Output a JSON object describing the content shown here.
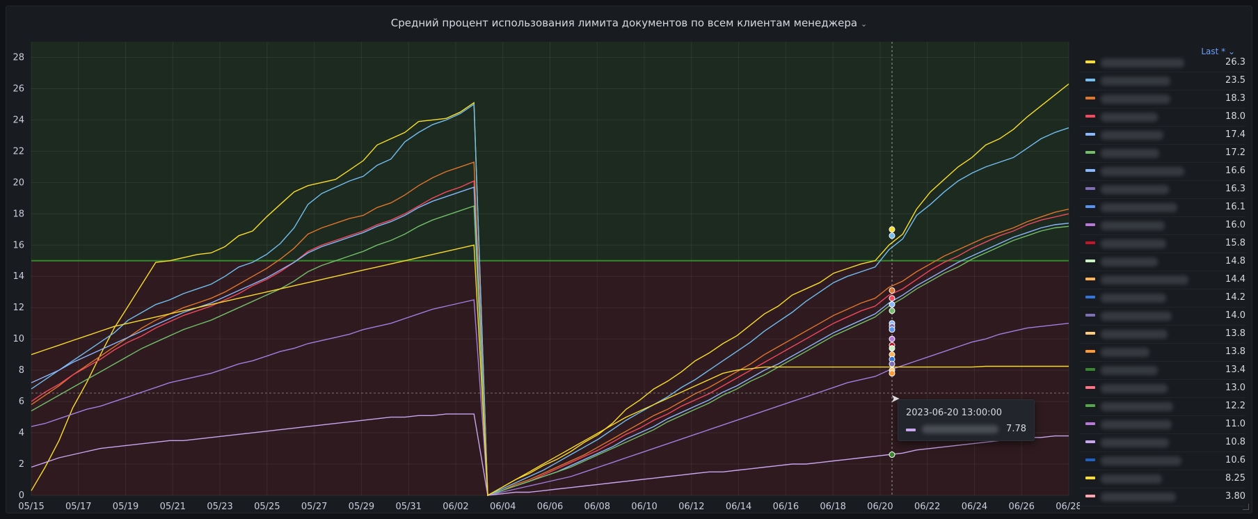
{
  "panel": {
    "title": "Средний процент использования лимита документов по всем клиентам менеджера",
    "title_chevron": "⌄",
    "legend_header": "Last * ⌄"
  },
  "tooltip": {
    "timestamp": "2023-06-20 13:00:00",
    "value": "7.78",
    "color": "#caa6f0"
  },
  "chart_data": {
    "type": "line",
    "ylim": [
      0,
      29
    ],
    "yticks": [
      0,
      2,
      4,
      6,
      8,
      10,
      12,
      14,
      16,
      18,
      20,
      22,
      24,
      26,
      28
    ],
    "x_ticks": [
      "05/15",
      "05/17",
      "05/19",
      "05/21",
      "05/23",
      "05/25",
      "05/27",
      "05/29",
      "05/31",
      "06/02",
      "06/04",
      "06/06",
      "06/08",
      "06/10",
      "06/12",
      "06/14",
      "06/16",
      "06/18",
      "06/20",
      "06/22",
      "06/24",
      "06/26",
      "06/28"
    ],
    "threshold": 15,
    "threshold_colors": {
      "above": "#1d2a1f",
      "below": "#2e1a1f",
      "line": "#37872d"
    },
    "series": [
      {
        "color": "#fade2a",
        "last": "26.3",
        "v": [
          0.3,
          1.8,
          3.5,
          5.6,
          7.2,
          9.0,
          10.7,
          12.1,
          13.5,
          14.9,
          15.0,
          15.2,
          15.4,
          15.5,
          15.9,
          16.6,
          16.9,
          17.8,
          18.6,
          19.4,
          19.8,
          20.0,
          20.2,
          20.8,
          21.4,
          22.4,
          22.8,
          23.2,
          23.9,
          24.0,
          24.1,
          24.5,
          25.1,
          0.0,
          0.5,
          1.0,
          1.4,
          1.9,
          2.3,
          2.8,
          3.4,
          3.9,
          4.6,
          5.5,
          6.1,
          6.8,
          7.3,
          7.9,
          8.6,
          9.1,
          9.7,
          10.2,
          10.9,
          11.6,
          12.1,
          12.8,
          13.2,
          13.6,
          14.2,
          14.5,
          14.8,
          15.0,
          16.0,
          16.7,
          18.3,
          19.4,
          20.2,
          21.0,
          21.6,
          22.4,
          22.8,
          23.4,
          24.2,
          24.9,
          25.6,
          26.3
        ]
      },
      {
        "color": "#73bff2",
        "last": "23.5",
        "v": [
          6.8,
          7.4,
          8.0,
          8.6,
          9.2,
          9.8,
          10.4,
          11.2,
          11.7,
          12.2,
          12.5,
          12.9,
          13.2,
          13.5,
          14.0,
          14.6,
          14.9,
          15.4,
          16.1,
          17.1,
          18.6,
          19.3,
          19.7,
          20.1,
          20.4,
          21.1,
          21.5,
          22.6,
          23.2,
          23.7,
          24.0,
          24.4,
          25.0,
          0.0,
          0.4,
          0.8,
          1.2,
          1.6,
          2.1,
          2.6,
          3.1,
          3.6,
          4.2,
          4.8,
          5.3,
          5.8,
          6.3,
          6.9,
          7.4,
          8.0,
          8.6,
          9.2,
          9.8,
          10.5,
          11.1,
          11.7,
          12.4,
          13.0,
          13.6,
          14.0,
          14.3,
          14.6,
          15.7,
          16.4,
          17.9,
          18.6,
          19.4,
          20.1,
          20.6,
          21.0,
          21.3,
          21.6,
          22.2,
          22.8,
          23.2,
          23.5
        ]
      },
      {
        "color": "#e0752d",
        "last": "18.3",
        "v": [
          5.8,
          6.4,
          7.0,
          7.7,
          8.3,
          8.9,
          9.5,
          10.1,
          10.7,
          11.2,
          11.6,
          12.0,
          12.3,
          12.6,
          13.0,
          13.5,
          14.0,
          14.5,
          15.1,
          15.8,
          16.7,
          17.1,
          17.4,
          17.7,
          17.9,
          18.4,
          18.7,
          19.2,
          19.8,
          20.3,
          20.7,
          21.0,
          21.3,
          0.0,
          0.3,
          0.7,
          1.0,
          1.4,
          1.8,
          2.2,
          2.6,
          3.1,
          3.6,
          4.1,
          4.6,
          5.1,
          5.5,
          6.0,
          6.5,
          6.9,
          7.4,
          7.9,
          8.4,
          9.0,
          9.5,
          10.0,
          10.5,
          11.0,
          11.5,
          11.9,
          12.3,
          12.6,
          13.3,
          13.7,
          14.3,
          14.8,
          15.3,
          15.7,
          16.1,
          16.5,
          16.8,
          17.1,
          17.5,
          17.8,
          18.1,
          18.3
        ]
      },
      {
        "color": "#f2495c",
        "last": "18.0",
        "v": [
          6.0,
          6.6,
          7.1,
          7.7,
          8.2,
          8.7,
          9.3,
          9.8,
          10.2,
          10.7,
          11.1,
          11.5,
          11.8,
          12.1,
          12.5,
          12.9,
          13.4,
          13.8,
          14.3,
          14.9,
          15.6,
          16.0,
          16.3,
          16.6,
          16.9,
          17.3,
          17.6,
          18.0,
          18.5,
          19.0,
          19.4,
          19.7,
          20.1,
          0.0,
          0.3,
          0.6,
          0.9,
          1.3,
          1.7,
          2.1,
          2.5,
          2.9,
          3.4,
          3.9,
          4.3,
          4.8,
          5.2,
          5.7,
          6.1,
          6.5,
          7.0,
          7.5,
          8.0,
          8.5,
          9.0,
          9.5,
          10.0,
          10.5,
          11.0,
          11.4,
          11.8,
          12.1,
          12.8,
          13.2,
          13.8,
          14.4,
          14.9,
          15.3,
          15.8,
          16.2,
          16.6,
          16.9,
          17.3,
          17.6,
          17.8,
          18.0
        ]
      },
      {
        "color": "#8ab8ff",
        "last": "17.4",
        "v": [
          7.2,
          7.6,
          8.0,
          8.5,
          8.9,
          9.3,
          9.7,
          10.1,
          10.5,
          10.9,
          11.3,
          11.7,
          12.0,
          12.3,
          12.7,
          13.1,
          13.5,
          13.9,
          14.4,
          14.9,
          15.5,
          15.9,
          16.2,
          16.5,
          16.8,
          17.2,
          17.5,
          17.9,
          18.4,
          18.8,
          19.1,
          19.4,
          19.7,
          0.0,
          0.3,
          0.6,
          0.9,
          1.2,
          1.5,
          1.9,
          2.3,
          2.7,
          3.1,
          3.6,
          4.0,
          4.4,
          4.9,
          5.3,
          5.7,
          6.1,
          6.6,
          7.0,
          7.5,
          8.0,
          8.4,
          8.9,
          9.4,
          9.9,
          10.4,
          10.8,
          11.2,
          11.6,
          12.3,
          12.8,
          13.4,
          13.9,
          14.4,
          14.9,
          15.3,
          15.7,
          16.1,
          16.5,
          16.8,
          17.1,
          17.3,
          17.4
        ]
      },
      {
        "color": "#73bf69",
        "last": "17.2",
        "v": [
          5.4,
          5.9,
          6.4,
          6.9,
          7.4,
          7.9,
          8.4,
          8.9,
          9.4,
          9.8,
          10.2,
          10.6,
          10.9,
          11.2,
          11.6,
          12.0,
          12.4,
          12.8,
          13.2,
          13.7,
          14.3,
          14.7,
          15.0,
          15.3,
          15.6,
          16.0,
          16.3,
          16.7,
          17.2,
          17.6,
          17.9,
          18.2,
          18.5,
          0.0,
          0.3,
          0.6,
          0.9,
          1.2,
          1.5,
          1.8,
          2.2,
          2.6,
          3.0,
          3.4,
          3.8,
          4.2,
          4.7,
          5.1,
          5.5,
          5.9,
          6.4,
          6.8,
          7.3,
          7.7,
          8.2,
          8.7,
          9.2,
          9.7,
          10.2,
          10.6,
          11.0,
          11.4,
          12.1,
          12.6,
          13.2,
          13.7,
          14.2,
          14.6,
          15.1,
          15.5,
          15.9,
          16.3,
          16.6,
          16.9,
          17.1,
          17.2
        ]
      },
      {
        "color": "#a37fe0",
        "last": "11.0",
        "v": [
          4.4,
          4.6,
          4.9,
          5.2,
          5.5,
          5.7,
          6.0,
          6.3,
          6.6,
          6.9,
          7.2,
          7.4,
          7.6,
          7.8,
          8.1,
          8.4,
          8.6,
          8.9,
          9.2,
          9.4,
          9.7,
          9.9,
          10.1,
          10.3,
          10.6,
          10.8,
          11.0,
          11.3,
          11.6,
          11.9,
          12.1,
          12.3,
          12.5,
          0.0,
          0.2,
          0.4,
          0.6,
          0.8,
          1.0,
          1.2,
          1.5,
          1.8,
          2.1,
          2.4,
          2.7,
          3.0,
          3.3,
          3.6,
          3.9,
          4.2,
          4.5,
          4.8,
          5.1,
          5.4,
          5.7,
          6.0,
          6.3,
          6.6,
          6.9,
          7.2,
          7.4,
          7.6,
          8.0,
          8.3,
          8.6,
          8.9,
          9.2,
          9.5,
          9.8,
          10.0,
          10.3,
          10.5,
          10.7,
          10.8,
          10.9,
          11.0
        ]
      },
      {
        "color": "#caa6f0",
        "last": "3.80",
        "v": [
          1.8,
          2.1,
          2.4,
          2.6,
          2.8,
          3.0,
          3.1,
          3.2,
          3.3,
          3.4,
          3.5,
          3.5,
          3.6,
          3.7,
          3.8,
          3.9,
          4.0,
          4.1,
          4.2,
          4.3,
          4.4,
          4.5,
          4.6,
          4.7,
          4.8,
          4.9,
          5.0,
          5.0,
          5.1,
          5.1,
          5.2,
          5.2,
          5.2,
          0.0,
          0.1,
          0.2,
          0.2,
          0.3,
          0.4,
          0.5,
          0.6,
          0.7,
          0.8,
          0.9,
          1.0,
          1.1,
          1.2,
          1.3,
          1.4,
          1.5,
          1.5,
          1.6,
          1.7,
          1.8,
          1.9,
          2.0,
          2.0,
          2.1,
          2.2,
          2.3,
          2.4,
          2.5,
          2.6,
          2.7,
          2.9,
          3.0,
          3.1,
          3.2,
          3.3,
          3.4,
          3.5,
          3.6,
          3.7,
          3.7,
          3.8,
          3.8
        ]
      },
      {
        "color": "#fadb2a",
        "last": "8.25",
        "v": [
          9.0,
          9.3,
          9.6,
          9.9,
          10.2,
          10.5,
          10.8,
          11.0,
          11.2,
          11.4,
          11.6,
          11.8,
          12.0,
          12.2,
          12.4,
          12.6,
          12.8,
          13.0,
          13.2,
          13.4,
          13.6,
          13.8,
          14.0,
          14.2,
          14.4,
          14.6,
          14.8,
          15.0,
          15.2,
          15.4,
          15.6,
          15.8,
          16.0,
          0.0,
          0.5,
          1.0,
          1.5,
          2.0,
          2.5,
          3.0,
          3.5,
          4.0,
          4.5,
          5.0,
          5.4,
          5.8,
          6.2,
          6.6,
          7.0,
          7.4,
          7.8,
          8.0,
          8.1,
          8.2,
          8.2,
          8.2,
          8.2,
          8.2,
          8.2,
          8.2,
          8.2,
          8.2,
          8.2,
          8.2,
          8.2,
          8.2,
          8.2,
          8.2,
          8.2,
          8.25,
          8.25,
          8.25,
          8.25,
          8.25,
          8.25,
          8.25
        ]
      }
    ],
    "legend_values": [
      "26.3",
      "23.5",
      "18.3",
      "18.0",
      "17.4",
      "17.2",
      "16.6",
      "16.3",
      "16.1",
      "16.0",
      "15.8",
      "14.8",
      "14.4",
      "14.2",
      "14.0",
      "13.8",
      "13.8",
      "13.4",
      "13.0",
      "12.2",
      "11.0",
      "10.8",
      "10.6",
      "8.25",
      "3.80"
    ],
    "legend_colors": [
      "#fade2a",
      "#73bff2",
      "#e0752d",
      "#f2495c",
      "#8ab8ff",
      "#73bf69",
      "#8ab8ff",
      "#806eb7",
      "#5794f2",
      "#b877d9",
      "#c4162a",
      "#c8f2c2",
      "#ffb357",
      "#3274d9",
      "#806eb7",
      "#ffcb7d",
      "#ff9830",
      "#37872d",
      "#ff7383",
      "#56a64b",
      "#b877d9",
      "#caa6f0",
      "#1f60c4",
      "#fade2a",
      "#ffa6b0"
    ],
    "legend_name_widths": [
      120,
      100,
      100,
      82,
      90,
      84,
      120,
      98,
      110,
      92,
      94,
      82,
      126,
      94,
      102,
      96,
      70,
      82,
      96,
      104,
      102,
      98,
      116,
      88,
      108
    ]
  }
}
